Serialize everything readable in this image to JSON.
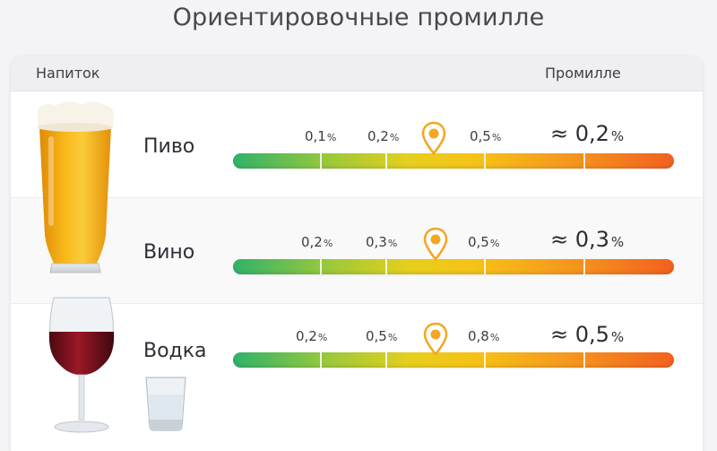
{
  "title": "Ориентировочные промилле",
  "header": {
    "drink_label": "Напиток",
    "permille_label": "Промилле"
  },
  "rows": [
    {
      "name": "Пиво",
      "ticks": [
        {
          "value": "0,1",
          "unit": "%"
        },
        {
          "value": "0,2",
          "unit": "%"
        },
        {
          "value": "0,5",
          "unit": "%"
        }
      ],
      "result": {
        "prefix": "≈",
        "value": "0,2",
        "unit": "%"
      },
      "icon": "beer-glass-icon"
    },
    {
      "name": "Вино",
      "ticks": [
        {
          "value": "0,2",
          "unit": "%"
        },
        {
          "value": "0,3",
          "unit": "%"
        },
        {
          "value": "0,5",
          "unit": "%"
        }
      ],
      "result": {
        "prefix": "≈",
        "value": "0,3",
        "unit": "%"
      },
      "icon": "wine-glass-icon"
    },
    {
      "name": "Водка",
      "ticks": [
        {
          "value": "0,2",
          "unit": "%"
        },
        {
          "value": "0,5",
          "unit": "%"
        },
        {
          "value": "0,8",
          "unit": "%"
        }
      ],
      "result": {
        "prefix": "≈",
        "value": "0,5",
        "unit": "%"
      },
      "icon": "shot-glass-icon"
    }
  ],
  "colors": {
    "scale_start": "#2fb26a",
    "scale_mid": "#f6c216",
    "scale_end": "#f2601f",
    "marker": "#f5a623"
  }
}
